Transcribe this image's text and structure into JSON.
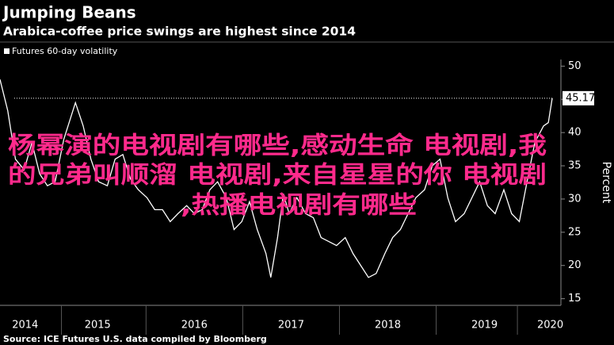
{
  "chart_data": {
    "type": "line",
    "title": "Jumping Beans",
    "subtitle": "Arabica-coffee price swings are highest since 2014",
    "y_label": "Percent",
    "source": "Source: ICE Futures U.S. data compiled by Bloomberg",
    "annotation": [
      "杨幂演的电视剧有哪些,感动生命 电视剧,我",
      "的兄弟叫顺溜 电视剧,来自星星的你 电视剧",
      ",热播电视剧有哪些"
    ],
    "x": [
      2014.49,
      2014.57,
      2014.65,
      2014.74,
      2014.82,
      2014.9,
      2014.98,
      2015.06,
      2015.15,
      2015.27,
      2015.35,
      2015.43,
      2015.51,
      2015.6,
      2015.68,
      2015.76,
      2015.84,
      2015.92,
      2016.01,
      2016.09,
      2016.17,
      2016.25,
      2016.33,
      2016.42,
      2016.5,
      2016.58,
      2016.66,
      2016.74,
      2016.83,
      2016.91,
      2016.99,
      2017.07,
      2017.15,
      2017.24,
      2017.29,
      2017.36,
      2017.42,
      2017.48,
      2017.56,
      2017.65,
      2017.73,
      2017.81,
      2017.89,
      2017.97,
      2018.06,
      2018.14,
      2018.22,
      2018.3,
      2018.38,
      2018.47,
      2018.55,
      2018.63,
      2018.71,
      2018.79,
      2018.88,
      2018.96,
      2019.04,
      2019.12,
      2019.2,
      2019.29,
      2019.37,
      2019.45,
      2019.53,
      2019.61,
      2019.7,
      2019.78,
      2019.86,
      2019.94,
      2020.02,
      2020.11,
      2020.16,
      2020.2
    ],
    "series": [
      {
        "name": "Futures 60-day volatility",
        "color": "#ffffff",
        "values": [
          48,
          43.3,
          36,
          34.4,
          38.5,
          33.8,
          32,
          32.6,
          39,
          44.5,
          41,
          36,
          32.6,
          32,
          36,
          36.7,
          33,
          31.4,
          30.2,
          28.4,
          28.4,
          26.6,
          27.8,
          29,
          27.8,
          28.4,
          31.4,
          32.6,
          30.2,
          25.4,
          26.6,
          29.6,
          25.4,
          21.8,
          18.2,
          24.2,
          30.8,
          27.8,
          30.2,
          27.8,
          27.2,
          24.2,
          23.6,
          23,
          24.2,
          21.8,
          20,
          18.2,
          18.8,
          21.8,
          24.2,
          25.4,
          27.8,
          30.2,
          31.4,
          35,
          36,
          30.2,
          26.6,
          27.8,
          30.2,
          32.6,
          29,
          27.8,
          31.4,
          27.8,
          26.6,
          32.6,
          38.5,
          41,
          41.5,
          45.17
        ]
      }
    ],
    "xlim": [
      2014.49,
      2020.29
    ],
    "xticks": [
      {
        "value": 2014.75,
        "label": "2014"
      },
      {
        "value": 2015.5,
        "label": "2015"
      },
      {
        "value": 2016.5,
        "label": "2016"
      },
      {
        "value": 2017.5,
        "label": "2017"
      },
      {
        "value": 2018.5,
        "label": "2018"
      },
      {
        "value": 2019.5,
        "label": "2019"
      },
      {
        "value": 2020.18,
        "label": "2020"
      }
    ],
    "ylim": [
      14,
      51
    ],
    "yticks": [
      15,
      20,
      25,
      30,
      35,
      40,
      45,
      50
    ],
    "grid": false
  }
}
